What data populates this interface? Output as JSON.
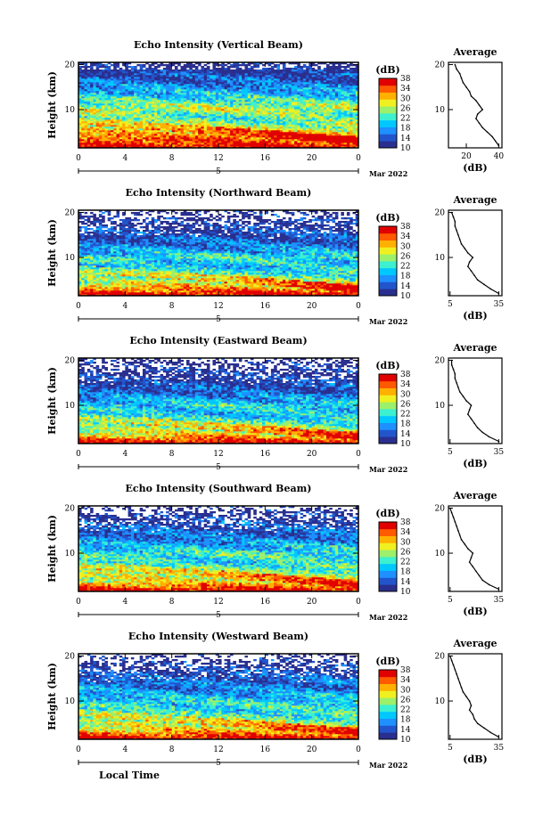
{
  "figure": {
    "xlabel": "Local Time",
    "date_label": "Mar 2022",
    "day_label": "5"
  },
  "colorbar": {
    "unit": "(dB)",
    "ticks": [
      "10",
      "14",
      "18",
      "22",
      "26",
      "30",
      "34",
      "38"
    ],
    "range": [
      10,
      38
    ],
    "colors": [
      "#2a2f8f",
      "#2255cc",
      "#1e90ff",
      "#00c8ff",
      "#3cf0d0",
      "#9cf06a",
      "#f0f020",
      "#ffb000",
      "#ff5a00",
      "#e00000"
    ]
  },
  "chart_data": [
    {
      "type": "heatmap",
      "title": "Echo Intensity (Vertical Beam)",
      "xlabel": "Local Time",
      "ylabel": "Height (km)",
      "x_ticks": [
        "0",
        "4",
        "8",
        "12",
        "16",
        "20",
        "0"
      ],
      "y_ticks": [
        "10",
        "20"
      ],
      "xlim": [
        0,
        24
      ],
      "ylim": [
        1.5,
        20.5
      ],
      "z_unit": "(dB)",
      "zlim": [
        10,
        38
      ],
      "profile": {
        "title": "Average",
        "xlabel": "(dB)",
        "x_ticks": [
          "20",
          "40"
        ],
        "xlim": [
          9,
          42
        ],
        "heights": [
          2,
          3,
          4,
          5,
          6,
          7,
          8,
          9,
          10,
          11,
          12,
          13,
          14,
          15,
          16,
          17,
          18,
          19,
          20
        ],
        "values": [
          40,
          38,
          36,
          33,
          30,
          28,
          26,
          27,
          30,
          28,
          26,
          23,
          22,
          20,
          18,
          17,
          16,
          14,
          13
        ]
      }
    },
    {
      "type": "heatmap",
      "title": "Echo Intensity (Northward Beam)",
      "xlabel": "Local Time",
      "ylabel": "Height (km)",
      "x_ticks": [
        "0",
        "4",
        "8",
        "12",
        "16",
        "20",
        "0"
      ],
      "y_ticks": [
        "10",
        "20"
      ],
      "xlim": [
        0,
        24
      ],
      "ylim": [
        1.5,
        20.5
      ],
      "z_unit": "(dB)",
      "zlim": [
        10,
        38
      ],
      "profile": {
        "title": "Average",
        "xlabel": "(dB)",
        "x_ticks": [
          "5",
          "35"
        ],
        "xlim": [
          4,
          37
        ],
        "heights": [
          2,
          3,
          4,
          5,
          6,
          7,
          8,
          9,
          10,
          11,
          12,
          13,
          14,
          15,
          16,
          17,
          18,
          19,
          20
        ],
        "values": [
          35,
          30,
          26,
          22,
          20,
          18,
          16,
          17,
          19,
          16,
          14,
          12,
          11,
          10,
          9,
          8,
          8,
          7,
          6
        ]
      }
    },
    {
      "type": "heatmap",
      "title": "Echo Intensity (Eastward Beam)",
      "xlabel": "Local Time",
      "ylabel": "Height (km)",
      "x_ticks": [
        "0",
        "4",
        "8",
        "12",
        "16",
        "20",
        "0"
      ],
      "y_ticks": [
        "10",
        "20"
      ],
      "xlim": [
        0,
        24
      ],
      "ylim": [
        1.5,
        20.5
      ],
      "z_unit": "(dB)",
      "zlim": [
        10,
        38
      ],
      "profile": {
        "title": "Average",
        "xlabel": "(dB)",
        "x_ticks": [
          "5",
          "35"
        ],
        "xlim": [
          4,
          37
        ],
        "heights": [
          2,
          3,
          4,
          5,
          6,
          7,
          8,
          9,
          10,
          11,
          12,
          13,
          14,
          15,
          16,
          17,
          18,
          19,
          20
        ],
        "values": [
          35,
          29,
          25,
          22,
          20,
          18,
          16,
          17,
          18,
          15,
          13,
          11,
          10,
          9,
          8,
          8,
          7,
          6,
          6
        ]
      }
    },
    {
      "type": "heatmap",
      "title": "Echo Intensity (Southward Beam)",
      "xlabel": "Local Time",
      "ylabel": "Height (km)",
      "x_ticks": [
        "0",
        "4",
        "8",
        "12",
        "16",
        "20",
        "0"
      ],
      "y_ticks": [
        "10",
        "20"
      ],
      "xlim": [
        0,
        24
      ],
      "ylim": [
        1.5,
        20.5
      ],
      "z_unit": "(dB)",
      "zlim": [
        10,
        38
      ],
      "profile": {
        "title": "Average",
        "xlabel": "(dB)",
        "x_ticks": [
          "5",
          "35"
        ],
        "xlim": [
          4,
          37
        ],
        "heights": [
          2,
          3,
          4,
          5,
          6,
          7,
          8,
          9,
          10,
          11,
          12,
          13,
          14,
          15,
          16,
          17,
          18,
          19,
          20
        ],
        "values": [
          35,
          29,
          25,
          23,
          21,
          19,
          17,
          18,
          19,
          16,
          14,
          12,
          11,
          10,
          9,
          8,
          7,
          6,
          5
        ]
      }
    },
    {
      "type": "heatmap",
      "title": "Echo Intensity (Westward Beam)",
      "xlabel": "Local Time",
      "ylabel": "Height (km)",
      "x_ticks": [
        "0",
        "4",
        "8",
        "12",
        "16",
        "20",
        "0"
      ],
      "y_ticks": [
        "10",
        "20"
      ],
      "xlim": [
        0,
        24
      ],
      "ylim": [
        1.5,
        20.5
      ],
      "z_unit": "(dB)",
      "zlim": [
        10,
        38
      ],
      "profile": {
        "title": "Average",
        "xlabel": "(dB)",
        "x_ticks": [
          "5",
          "35"
        ],
        "xlim": [
          4,
          37
        ],
        "heights": [
          2,
          3,
          4,
          5,
          6,
          7,
          8,
          9,
          10,
          11,
          12,
          13,
          14,
          15,
          16,
          17,
          18,
          19,
          20
        ],
        "values": [
          35,
          30,
          26,
          22,
          20,
          19,
          17,
          18,
          17,
          15,
          13,
          12,
          11,
          10,
          9,
          8,
          7,
          6,
          5
        ]
      }
    }
  ]
}
